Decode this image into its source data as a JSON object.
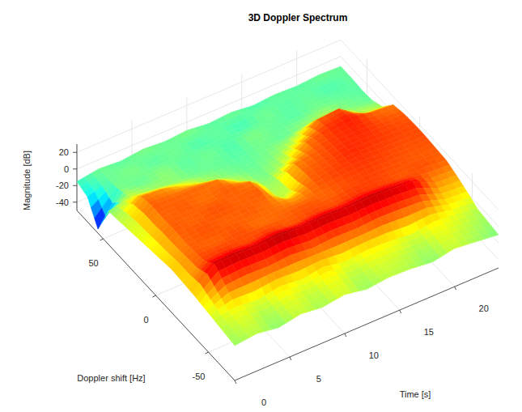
{
  "chart_data": {
    "type": "surface",
    "title": "3D Doppler Spectrum",
    "xlabel": "Time [s]",
    "ylabel": "Doppler shift [Hz]",
    "zlabel": "Magnitude [dB]",
    "color": "jet",
    "grid": true,
    "xlim": [
      0,
      24
    ],
    "ylim": [
      -75,
      75
    ],
    "zlim": [
      -50,
      30
    ],
    "xticks": [
      0,
      5,
      10,
      15,
      20
    ],
    "yticks": [
      -50,
      0,
      50
    ],
    "zticks": [
      -40,
      -20,
      0,
      20
    ],
    "x": [
      0,
      2,
      4,
      6,
      8,
      10,
      12,
      14,
      16,
      18,
      20,
      22,
      24
    ],
    "y": [
      -75,
      -65,
      -55,
      -45,
      -35,
      -25,
      -15,
      -5,
      5,
      15,
      25,
      35,
      45,
      55,
      65,
      75
    ],
    "z": [
      [
        -8,
        -5,
        -9,
        -4,
        -7,
        -3,
        -8,
        -5,
        -6,
        -9,
        -4,
        -7,
        -10
      ],
      [
        -6,
        -3,
        -7,
        -2,
        -5,
        -1,
        -6,
        -3,
        -4,
        -7,
        -2,
        -5,
        -8
      ],
      [
        -4,
        0,
        -3,
        2,
        -1,
        3,
        -2,
        1,
        0,
        -3,
        1,
        -2,
        -6
      ],
      [
        -2,
        12,
        14,
        13,
        15,
        12,
        14,
        13,
        15,
        14,
        12,
        3,
        1
      ],
      [
        0,
        24,
        25,
        24,
        26,
        24,
        25,
        24,
        25,
        24,
        22,
        9,
        7
      ],
      [
        1,
        15,
        16,
        14,
        16,
        13,
        15,
        14,
        16,
        15,
        13,
        14,
        12
      ],
      [
        2,
        13,
        12,
        14,
        11,
        12,
        13,
        12,
        14,
        15,
        14,
        13,
        13
      ],
      [
        0,
        12,
        14,
        12,
        13,
        11,
        6,
        13,
        15,
        16,
        15,
        14,
        14
      ],
      [
        -2,
        13,
        12,
        14,
        12,
        13,
        -8,
        12,
        14,
        17,
        16,
        15,
        14
      ],
      [
        -4,
        12,
        13,
        11,
        13,
        10,
        -10,
        9,
        13,
        16,
        17,
        14,
        13
      ],
      [
        -6,
        13,
        12,
        12,
        10,
        -4,
        -11,
        -6,
        10,
        16,
        18,
        12,
        10
      ],
      [
        -8,
        10,
        8,
        1,
        -6,
        -10,
        -12,
        -10,
        -4,
        12,
        14,
        -4,
        -6
      ],
      [
        -10,
        -4,
        -7,
        -9,
        -11,
        -12,
        -13,
        -11,
        -12,
        -8,
        -6,
        -10,
        -12
      ],
      [
        -45,
        -10,
        -12,
        -9,
        -13,
        -11,
        -14,
        -10,
        -12,
        -13,
        -11,
        -12,
        -13
      ],
      [
        -20,
        -12,
        -10,
        -13,
        -11,
        -14,
        -12,
        -15,
        -11,
        -13,
        -12,
        -14,
        -12
      ],
      [
        -15,
        -11,
        -13,
        -10,
        -12,
        -10,
        -13,
        -11,
        -14,
        -12,
        -13,
        -11,
        -12
      ]
    ]
  }
}
